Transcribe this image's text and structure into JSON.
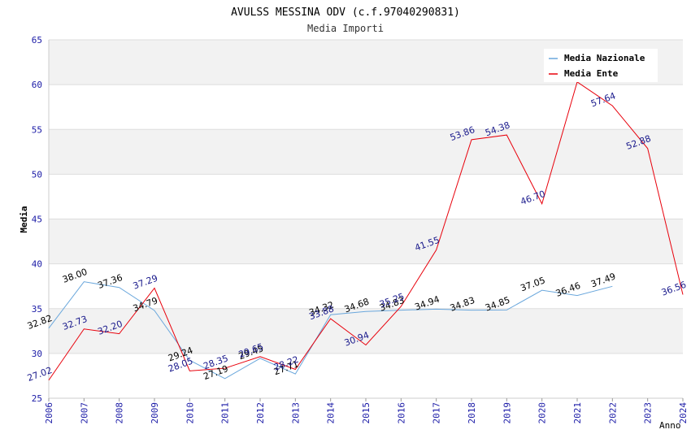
{
  "chart_data": {
    "type": "line",
    "title": "AVULSS MESSINA ODV (c.f.97040290831)",
    "subtitle": "Media Importi",
    "xlabel": "Anno",
    "ylabel": "Media",
    "x": [
      "2006",
      "2007",
      "2008",
      "2009",
      "2010",
      "2011",
      "2012",
      "2013",
      "2014",
      "2015",
      "2016",
      "2017",
      "2018",
      "2019",
      "2020",
      "2021",
      "2022",
      "2023",
      "2024"
    ],
    "ylim": [
      25,
      65
    ],
    "yticks": [
      "25",
      "30",
      "35",
      "40",
      "45",
      "50",
      "55",
      "60",
      "65"
    ],
    "grid": "horizontal bands",
    "legend_position": "top-right",
    "series": [
      {
        "name": "Media Nazionale",
        "color": "#6aa7dc",
        "label_color": "#000000",
        "values": [
          32.82,
          38.0,
          37.36,
          34.79,
          29.24,
          27.19,
          29.45,
          27.71,
          34.32,
          34.68,
          34.83,
          34.94,
          34.83,
          34.85,
          37.05,
          36.46,
          37.49,
          null,
          null
        ],
        "labels": [
          "32.82",
          "38.00",
          "37.36",
          "34.79",
          "29.24",
          "27.19",
          "29.45",
          "27.71",
          "34.32",
          "34.68",
          "34.83",
          "34.94",
          "34.83",
          "34.85",
          "37.05",
          "36.46",
          "37.49",
          "",
          ""
        ]
      },
      {
        "name": "Media Ente",
        "color": "#e8000b",
        "label_color": "#1a1a8c",
        "values": [
          27.02,
          32.73,
          32.2,
          37.29,
          28.05,
          28.35,
          29.65,
          28.22,
          33.88,
          30.94,
          35.25,
          41.55,
          53.86,
          54.38,
          46.7,
          60.3,
          57.64,
          52.88,
          36.56
        ],
        "labels": [
          "27.02",
          "32.73",
          "32.20",
          "37.29",
          "28.05",
          "28.35",
          "29.65",
          "28.22",
          "33.88",
          "30.94",
          "35.25",
          "41.55",
          "53.86",
          "54.38",
          "46.70",
          "",
          "57.64",
          "52.88",
          "36.56"
        ]
      }
    ]
  }
}
